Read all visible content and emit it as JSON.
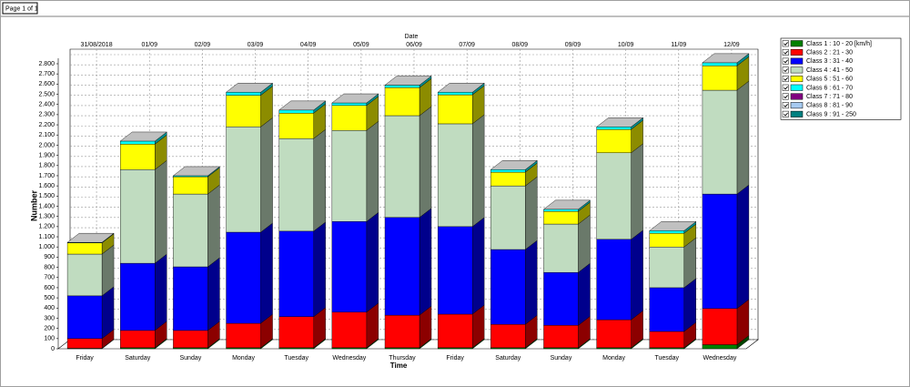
{
  "page_label": "Page 1 of 1",
  "chart_data": {
    "type": "bar3d-stacked",
    "x_label_top": "Date",
    "x_label": "Time",
    "y_label": "Number",
    "dates": [
      "31/08/2018",
      "01/09",
      "02/09",
      "03/09",
      "04/09",
      "05/09",
      "06/09",
      "07/09",
      "08/09",
      "09/09",
      "10/09",
      "11/09",
      "12/09"
    ],
    "categories": [
      "Friday",
      "Saturday",
      "Sunday",
      "Monday",
      "Tuesday",
      "Wednesday",
      "Thursday",
      "Friday",
      "Saturday",
      "Sunday",
      "Monday",
      "Tuesday",
      "Wednesday"
    ],
    "series": [
      {
        "name": "Class 1 : 10 - 20 [km/h]",
        "color": "#008000",
        "values": [
          5,
          10,
          10,
          10,
          10,
          10,
          10,
          10,
          10,
          10,
          10,
          10,
          40
        ]
      },
      {
        "name": "Class 2 : 21 - 30",
        "color": "#ff0000",
        "values": [
          95,
          170,
          170,
          240,
          305,
          350,
          320,
          330,
          230,
          220,
          275,
          160,
          355
        ]
      },
      {
        "name": "Class 3 : 31 - 40",
        "color": "#0000ff",
        "values": [
          420,
          660,
          625,
          895,
          840,
          890,
          960,
          860,
          735,
          520,
          790,
          430,
          1125
        ]
      },
      {
        "name": "Class 4 : 41 - 50",
        "color": "#c0dcc0",
        "values": [
          410,
          920,
          715,
          1035,
          910,
          895,
          1000,
          1010,
          625,
          475,
          850,
          400,
          1020
        ]
      },
      {
        "name": "Class 5 : 51 - 60",
        "color": "#ffff00",
        "values": [
          110,
          250,
          170,
          310,
          250,
          245,
          275,
          285,
          135,
          125,
          230,
          135,
          240
        ]
      },
      {
        "name": "Class 6 : 61 - 70",
        "color": "#00ffff",
        "values": [
          5,
          30,
          10,
          30,
          30,
          25,
          25,
          25,
          25,
          20,
          25,
          25,
          30
        ]
      },
      {
        "name": "Class 7 : 71 - 80",
        "color": "#800080",
        "values": [
          0,
          0,
          0,
          0,
          0,
          0,
          0,
          0,
          0,
          0,
          0,
          0,
          0
        ]
      },
      {
        "name": "Class 8 : 81 - 90",
        "color": "#a6caf0",
        "values": [
          0,
          0,
          0,
          0,
          0,
          0,
          0,
          0,
          0,
          0,
          0,
          0,
          0
        ]
      },
      {
        "name": "Class 9 : 91 - 250",
        "color": "#008080",
        "values": [
          0,
          0,
          0,
          0,
          0,
          0,
          0,
          0,
          0,
          0,
          0,
          0,
          0
        ]
      }
    ],
    "ylim": [
      0,
      2800
    ],
    "yticks": [
      0,
      100,
      200,
      300,
      400,
      500,
      600,
      700,
      800,
      900,
      {
        "value": 1000,
        "label": "1.000"
      },
      {
        "value": 1100,
        "label": "1.100"
      },
      {
        "value": 1200,
        "label": "1.200"
      },
      {
        "value": 1300,
        "label": "1.300"
      },
      {
        "value": 1400,
        "label": "1.400"
      },
      {
        "value": 1500,
        "label": "1.500"
      },
      {
        "value": 1600,
        "label": "1.600"
      },
      {
        "value": 1700,
        "label": "1.700"
      },
      {
        "value": 1800,
        "label": "1.800"
      },
      {
        "value": 1900,
        "label": "1.900"
      },
      {
        "value": 2000,
        "label": "2.000"
      },
      {
        "value": 2100,
        "label": "2.100"
      },
      {
        "value": 2200,
        "label": "2.200"
      },
      {
        "value": 2300,
        "label": "2.300"
      },
      {
        "value": 2400,
        "label": "2.400"
      },
      {
        "value": 2500,
        "label": "2.500"
      },
      {
        "value": 2600,
        "label": "2.600"
      },
      {
        "value": 2700,
        "label": "2.700"
      },
      {
        "value": 2800,
        "label": "2.800"
      }
    ],
    "grid": true,
    "legend": "right"
  }
}
